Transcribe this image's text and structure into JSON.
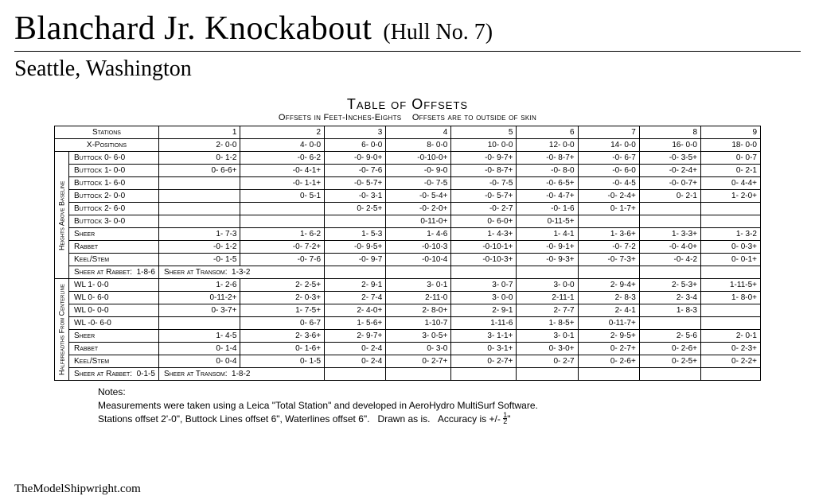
{
  "header": {
    "title": "Blanchard Jr. Knockabout",
    "hull": "(Hull No. 7)",
    "subtitle": "Seattle, Washington"
  },
  "table": {
    "title": "Table of Offsets",
    "subtitle": "Offsets in Feet-Inches-Eights    Offsets are to outside of skin",
    "stations_label": "Stations",
    "xpos_label": "X-Positions",
    "stations": [
      "1",
      "2",
      "3",
      "4",
      "5",
      "6",
      "7",
      "8",
      "9"
    ],
    "xpos": [
      "2- 0-0",
      "4- 0-0",
      "6- 0-0",
      "8- 0-0",
      "10- 0-0",
      "12- 0-0",
      "14- 0-0",
      "16- 0-0",
      "18- 0-0"
    ],
    "section1_label": "Heights Above Baseline",
    "section2_label": "Halfbreadths From Centerline",
    "heights": [
      {
        "label": "Buttock 0- 6-0",
        "cells": [
          "0- 1-2",
          "-0- 6-2",
          "-0- 9-0+",
          "-0-10-0+",
          "-0- 9-7+",
          "-0- 8-7+",
          "-0- 6-7",
          "-0- 3-5+",
          "0- 0-7"
        ]
      },
      {
        "label": "Buttock 1- 0-0",
        "cells": [
          "0- 6-6+",
          "-0- 4-1+",
          "-0- 7-6",
          "-0- 9-0",
          "-0- 8-7+",
          "-0- 8-0",
          "-0- 6-0",
          "-0- 2-4+",
          "0- 2-1"
        ]
      },
      {
        "label": "Buttock 1- 6-0",
        "cells": [
          "",
          "-0- 1-1+",
          "-0- 5-7+",
          "-0- 7-5",
          "-0- 7-5",
          "-0- 6-5+",
          "-0- 4-5",
          "-0- 0-7+",
          "0- 4-4+"
        ]
      },
      {
        "label": "Buttock 2- 0-0",
        "cells": [
          "",
          "0- 5-1",
          "-0- 3-1",
          "-0- 5-4+",
          "-0- 5-7+",
          "-0- 4-7+",
          "-0- 2-4+",
          "0- 2-1",
          "1- 2-0+"
        ]
      },
      {
        "label": "Buttock 2- 6-0",
        "cells": [
          "",
          "",
          "0- 2-5+",
          "-0- 2-0+",
          "-0- 2-7",
          "-0- 1-6",
          "0- 1-7+",
          "",
          ""
        ]
      },
      {
        "label": "Buttock 3- 0-0",
        "cells": [
          "",
          "",
          "",
          "0-11-0+",
          "0- 6-0+",
          "0-11-5+",
          "",
          "",
          ""
        ]
      },
      {
        "label": "Sheer",
        "cells": [
          "1- 7-3",
          "1- 6-2",
          "1- 5-3",
          "1- 4-6",
          "1- 4-3+",
          "1- 4-1",
          "1- 3-6+",
          "1- 3-3+",
          "1- 3-2"
        ]
      },
      {
        "label": "Rabbet",
        "cells": [
          "-0- 1-2",
          "-0- 7-2+",
          "-0- 9-5+",
          "-0-10-3",
          "-0-10-1+",
          "-0- 9-1+",
          "-0- 7-2",
          "-0- 4-0+",
          "0- 0-3+"
        ]
      },
      {
        "label": "Keel/Stem",
        "cells": [
          "-0- 1-5",
          "-0- 7-6",
          "-0- 9-7",
          "-0-10-4",
          "-0-10-3+",
          "-0- 9-3+",
          "-0- 7-3+",
          "-0- 4-2",
          "0- 0-1+"
        ]
      }
    ],
    "heights_footer_a": "Sheer at Rabbet:  1-8-6",
    "heights_footer_b": "Sheer at Transom:  1-3-2",
    "breadths": [
      {
        "label": "WL 1- 0-0",
        "cells": [
          "1- 2-6",
          "2- 2-5+",
          "2- 9-1",
          "3- 0-1",
          "3- 0-7",
          "3- 0-0",
          "2- 9-4+",
          "2- 5-3+",
          "1-11-5+"
        ]
      },
      {
        "label": "WL 0- 6-0",
        "cells": [
          "0-11-2+",
          "2- 0-3+",
          "2- 7-4",
          "2-11-0",
          "3- 0-0",
          "2-11-1",
          "2- 8-3",
          "2- 3-4",
          "1- 8-0+"
        ]
      },
      {
        "label": "WL 0- 0-0",
        "cells": [
          "0- 3-7+",
          "1- 7-5+",
          "2- 4-0+",
          "2- 8-0+",
          "2- 9-1",
          "2- 7-7",
          "2- 4-1",
          "1- 8-3",
          ""
        ]
      },
      {
        "label": "WL -0- 6-0",
        "cells": [
          "",
          "0- 6-7",
          "1- 5-6+",
          "1-10-7",
          "1-11-6",
          "1- 8-5+",
          "0-11-7+",
          "",
          ""
        ]
      },
      {
        "label": "Sheer",
        "cells": [
          "1- 4-5",
          "2- 3-6+",
          "2- 9-7+",
          "3- 0-5+",
          "3- 1-1+",
          "3- 0-1",
          "2- 9-5+",
          "2- 5-6",
          "2- 0-1"
        ]
      },
      {
        "label": "Rabbet",
        "cells": [
          "0- 1-4",
          "0- 1-6+",
          "0- 2-4",
          "0- 3-0",
          "0- 3-1+",
          "0- 3-0+",
          "0- 2-7+",
          "0- 2-6+",
          "0- 2-3+"
        ]
      },
      {
        "label": "Keel/Stem",
        "cells": [
          "0- 0-4",
          "0- 1-5",
          "0- 2-4",
          "0- 2-7+",
          "0- 2-7+",
          "0- 2-7",
          "0- 2-6+",
          "0- 2-5+",
          "0- 2-2+"
        ]
      }
    ],
    "breadths_footer_a": "Sheer at Rabbet:  0-1-5",
    "breadths_footer_b": "Sheer at Transom:  1-8-2"
  },
  "notes": {
    "heading": "Notes:",
    "line1": "Measurements were taken using a Leica \"Total Station\" and developed in AeroHydro MultiSurf Software.",
    "line2_a": "Stations offset 2'-0\", Buttock Lines offset 6\", Waterlines offset 6\".   Drawn as is.   Accuracy is +/- ",
    "line2_b": "\""
  },
  "footer": "TheModelShipwright.com",
  "style": {
    "bg": "#ffffff",
    "fg": "#000000",
    "title_fontsize": 42,
    "subtitle_fontsize": 28,
    "table_fontsize": 10,
    "notes_fontsize": 12
  }
}
